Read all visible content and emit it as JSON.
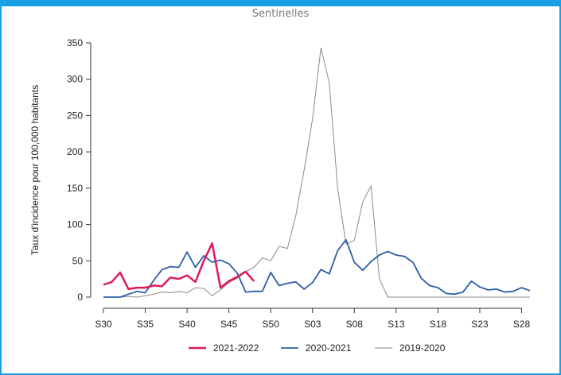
{
  "chart_data": {
    "type": "line",
    "title": "Sentinelles",
    "ylabel": "Taux d'incidence pour 100,000 habitants",
    "xlabel": "",
    "ylim": [
      0,
      350
    ],
    "yticks": [
      0,
      50,
      100,
      150,
      200,
      250,
      300,
      350
    ],
    "xticks": [
      "S30",
      "S35",
      "S40",
      "S45",
      "S50",
      "S03",
      "S08",
      "S13",
      "S18",
      "S23",
      "S28"
    ],
    "weeks": [
      "S30",
      "S31",
      "S32",
      "S33",
      "S34",
      "S35",
      "S36",
      "S37",
      "S38",
      "S39",
      "S40",
      "S41",
      "S42",
      "S43",
      "S44",
      "S45",
      "S46",
      "S47",
      "S48",
      "S49",
      "S50",
      "S51",
      "S52",
      "S01",
      "S02",
      "S03",
      "S04",
      "S05",
      "S06",
      "S07",
      "S08",
      "S09",
      "S10",
      "S11",
      "S12",
      "S13",
      "S14",
      "S15",
      "S16",
      "S17",
      "S18",
      "S19",
      "S20",
      "S21",
      "S22",
      "S23",
      "S24",
      "S25",
      "S26",
      "S27",
      "S28",
      "S29"
    ],
    "legend_position": "bottom",
    "series": [
      {
        "name": "2021-2022",
        "color": "#e0185c",
        "width": 2.5,
        "values": [
          17,
          21,
          34,
          11,
          13,
          13,
          16,
          15,
          27,
          25,
          30,
          21,
          50,
          74,
          13,
          22,
          28,
          35,
          22
        ]
      },
      {
        "name": "2020-2021",
        "color": "#2b5ea8",
        "width": 1.8,
        "values": [
          0,
          0,
          0,
          4,
          8,
          6,
          23,
          38,
          42,
          41,
          62,
          41,
          57,
          48,
          51,
          46,
          33,
          7,
          8,
          8,
          34,
          16,
          19,
          21,
          11,
          20,
          38,
          32,
          64,
          79,
          48,
          37,
          49,
          58,
          63,
          58,
          56,
          48,
          26,
          16,
          13,
          5,
          4,
          7,
          22,
          14,
          10,
          11,
          7,
          8,
          13,
          9
        ]
      },
      {
        "name": "2019-2020",
        "color": "#8a8a8a",
        "width": 1.0,
        "values": [
          0,
          0,
          0,
          1,
          0,
          2,
          4,
          7,
          6,
          8,
          6,
          13,
          12,
          2,
          10,
          20,
          26,
          35,
          41,
          54,
          50,
          70,
          67,
          112,
          175,
          245,
          343,
          295,
          150,
          73,
          78,
          131,
          153,
          25,
          0,
          0,
          0,
          0,
          0,
          0,
          0,
          0,
          0,
          0,
          0,
          0,
          0,
          0,
          0,
          0,
          0,
          0
        ]
      }
    ]
  }
}
